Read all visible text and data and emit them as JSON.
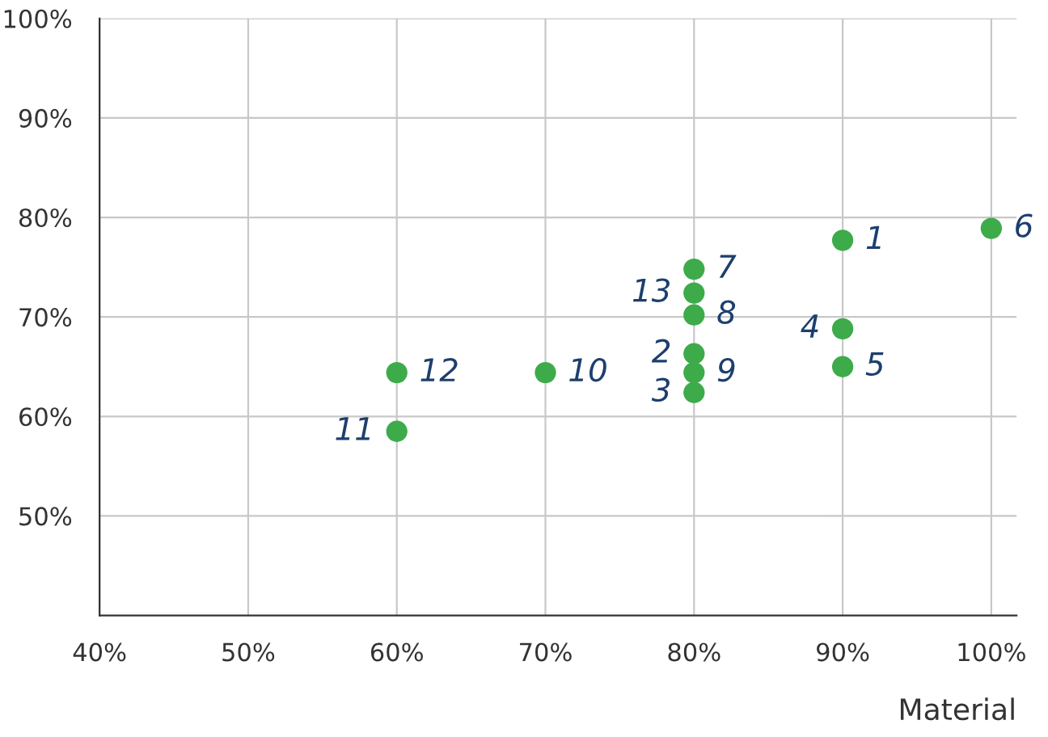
{
  "chart_data": {
    "type": "scatter",
    "xlabel": "Material",
    "series": [
      {
        "color": "#3dab4a",
        "x": [
          90,
          80,
          80,
          90,
          90,
          100,
          80,
          80,
          80,
          70,
          60,
          60,
          80
        ],
        "values": [
          77.7,
          66.3,
          62.4,
          68.8,
          65.0,
          78.9,
          74.8,
          70.2,
          64.4,
          64.4,
          58.5,
          64.4,
          72.4
        ]
      }
    ],
    "annotations": [
      {
        "text": "1",
        "x": 90,
        "y": 77.7
      },
      {
        "text": "2",
        "x": 80,
        "y": 66.3
      },
      {
        "text": "3",
        "x": 80,
        "y": 62.4
      },
      {
        "text": "4",
        "x": 90,
        "y": 68.8
      },
      {
        "text": "5",
        "x": 90,
        "y": 65.0
      },
      {
        "text": "6",
        "x": 100,
        "y": 78.9
      },
      {
        "text": "7",
        "x": 80,
        "y": 74.8
      },
      {
        "text": "8",
        "x": 80,
        "y": 70.2
      },
      {
        "text": "9",
        "x": 80,
        "y": 64.4
      },
      {
        "text": "10",
        "x": 70,
        "y": 64.4
      },
      {
        "text": "11",
        "x": 60,
        "y": 58.5
      },
      {
        "text": "12",
        "x": 60,
        "y": 64.4
      },
      {
        "text": "13",
        "x": 80,
        "y": 72.4
      }
    ],
    "xlim": [
      40,
      101.7
    ],
    "ylim": [
      40,
      100
    ],
    "xticks": [
      {
        "value": 40,
        "label": "40%"
      },
      {
        "value": 50,
        "label": "50%"
      },
      {
        "value": 60,
        "label": "60%"
      },
      {
        "value": 70,
        "label": "70%"
      },
      {
        "value": 80,
        "label": "80%"
      },
      {
        "value": 90,
        "label": "90%"
      },
      {
        "value": 100,
        "label": "100%"
      }
    ],
    "yticks": [
      {
        "value": 50,
        "label": "50%"
      },
      {
        "value": 60,
        "label": "60%"
      },
      {
        "value": 70,
        "label": "70%"
      },
      {
        "value": 80,
        "label": "80%"
      },
      {
        "value": 90,
        "label": "90%"
      },
      {
        "value": 100,
        "label": "100%"
      }
    ],
    "grid": true,
    "marker": "circle",
    "legend": false
  }
}
